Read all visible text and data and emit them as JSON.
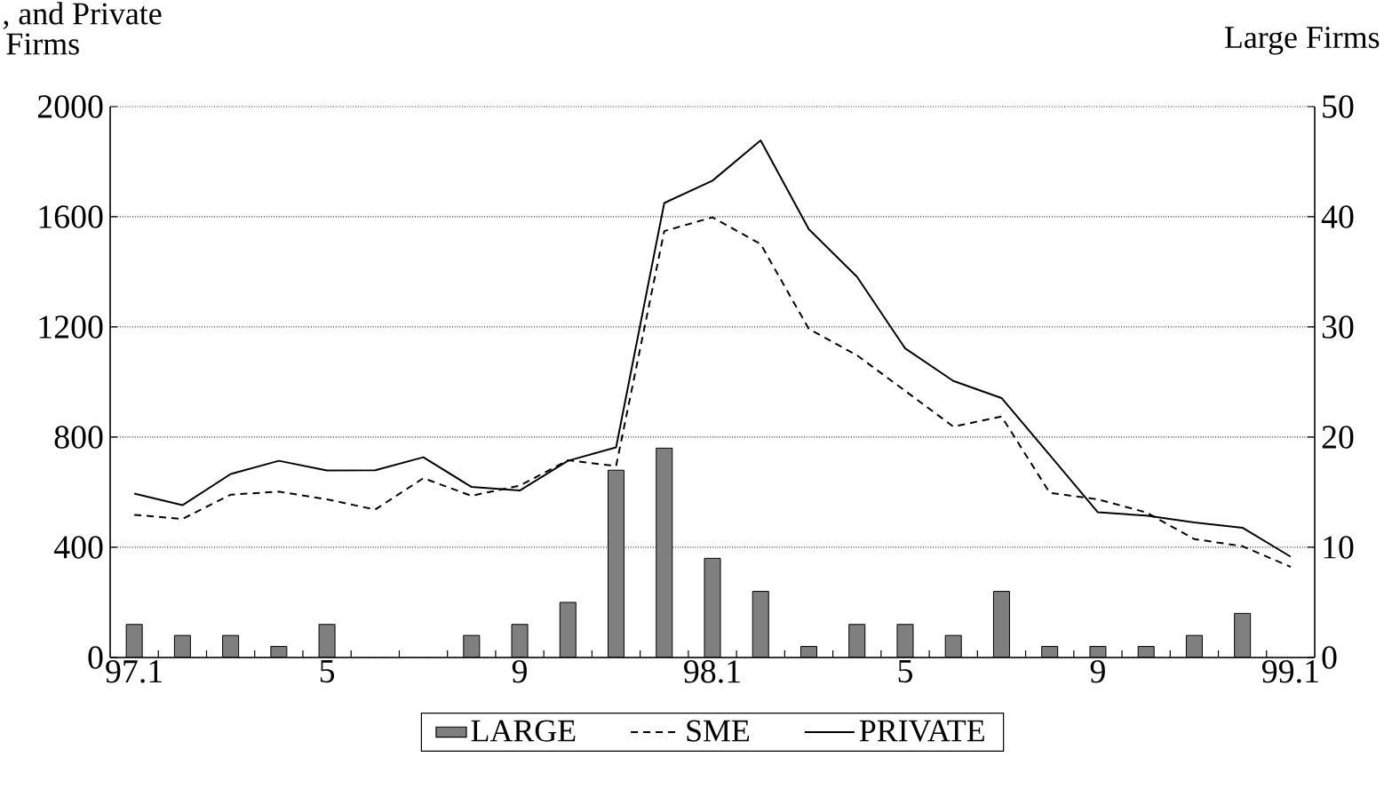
{
  "chart_data": {
    "type": "line",
    "title": ", and Private",
    "ylabel": "Firms",
    "y2label": "Large Firms",
    "categories": [
      "97.1",
      null,
      null,
      null,
      "5",
      null,
      null,
      null,
      "9",
      null,
      null,
      null,
      "98.1",
      null,
      null,
      null,
      "5",
      null,
      null,
      null,
      "9",
      null,
      null,
      null,
      "99.1"
    ],
    "ylim": [
      0,
      2000
    ],
    "yticks": [
      0,
      400,
      800,
      1200,
      1600,
      2000
    ],
    "y2lim": [
      0,
      50
    ],
    "y2ticks": [
      0,
      10,
      20,
      30,
      40,
      50
    ],
    "grid": "y",
    "legend": "bottom",
    "series": [
      {
        "name": "LARGE",
        "type": "bar",
        "axis": "y2",
        "color": "#7f7f7f",
        "values": [
          3,
          2,
          2,
          1,
          3,
          null,
          null,
          2,
          3,
          5,
          17,
          19,
          9,
          6,
          1,
          3,
          3,
          2,
          6,
          1,
          1,
          1,
          2,
          4,
          null
        ]
      },
      {
        "name": "SME",
        "line_style": "dashed",
        "color": "#000000",
        "values": [
          518,
          503,
          591,
          602,
          574,
          537,
          651,
          587,
          624,
          716,
          695,
          1548,
          1598,
          1501,
          1193,
          1097,
          968,
          838,
          875,
          598,
          574,
          527,
          430,
          404,
          329
        ]
      },
      {
        "name": "PRIVATE",
        "line_style": "solid",
        "color": "#000000",
        "values": [
          595,
          553,
          666,
          714,
          679,
          680,
          727,
          619,
          606,
          714,
          763,
          1650,
          1731,
          1877,
          1555,
          1382,
          1122,
          1004,
          942,
          735,
          527,
          515,
          490,
          471,
          366
        ]
      }
    ]
  }
}
